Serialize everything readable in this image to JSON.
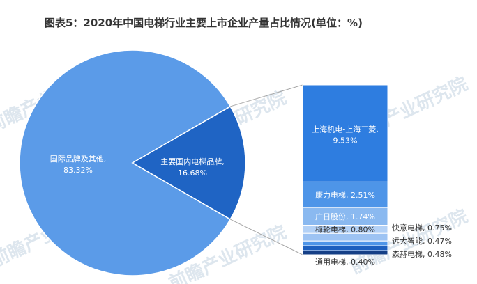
{
  "chart_data": {
    "type": "pie",
    "title": "图表5：2020年中国电梯行业主要上市企业产量占比情况(单位：%)",
    "pie": [
      {
        "label": "国际品牌及其他",
        "value": 83.32,
        "value_text": "83.32%",
        "color": "#5b9be8"
      },
      {
        "label": "主要国内电梯品牌",
        "value": 16.68,
        "value_text": "16.68%",
        "color": "#1f64c4"
      }
    ],
    "breakdown_of": "主要国内电梯品牌",
    "bar": [
      {
        "label": "上海机电-上海三菱",
        "value": 9.53,
        "text": "上海机电-上海三菱,",
        "value_text": "9.53%",
        "color": "#2e7de0",
        "label_pos": "inside"
      },
      {
        "label": "康力电梯",
        "value": 2.51,
        "text": "康力电梯, 2.51%",
        "color": "#4e95e8",
        "label_pos": "inside"
      },
      {
        "label": "广日股份",
        "value": 1.74,
        "text": "广日股份, 1.74%",
        "color": "#8ab9f0",
        "label_pos": "inside"
      },
      {
        "label": "梅轮电梯",
        "value": 0.8,
        "text": "梅轮电梯, 0.80%",
        "color": "#b3d1f6",
        "label_pos": "inside"
      },
      {
        "label": "快意电梯",
        "value": 0.75,
        "text": "快意电梯, 0.75%",
        "color": "#9dc3f3",
        "label_pos": "right"
      },
      {
        "label": "远大智能",
        "value": 0.47,
        "text": "远大智能, 0.47%",
        "color": "#4e95e8",
        "label_pos": "right"
      },
      {
        "label": "森赫电梯",
        "value": 0.48,
        "text": "森赫电梯, 0.48%",
        "color": "#1d5fbe",
        "label_pos": "right"
      },
      {
        "label": "通用电梯",
        "value": 0.4,
        "text": "通用电梯, 0.40%",
        "color": "#153f86",
        "label_pos": "below"
      }
    ]
  },
  "watermark": {
    "text": "前瞻产业研究院",
    "color": "#dde6ee"
  }
}
